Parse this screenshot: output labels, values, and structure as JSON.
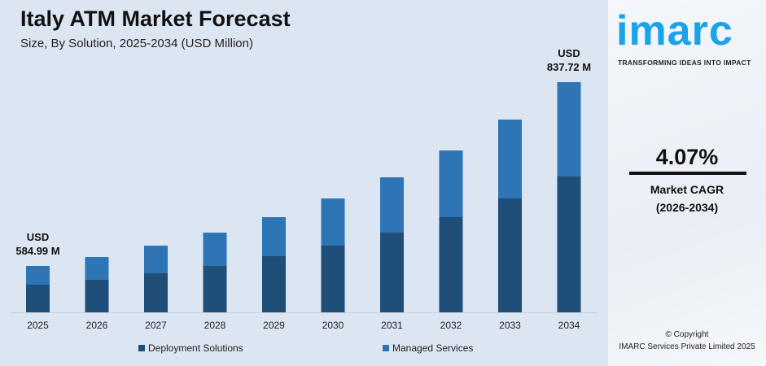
{
  "header": {
    "title": "Italy ATM Market Forecast",
    "subtitle": "Size, By Solution, 2025-2034 (USD Million)"
  },
  "chart_data": {
    "type": "bar",
    "stacked": true,
    "title": "Italy ATM Market Forecast",
    "subtitle": "Size, By Solution, 2025-2034 (USD Million)",
    "categories": [
      "2025",
      "2026",
      "2027",
      "2028",
      "2029",
      "2030",
      "2031",
      "2032",
      "2033",
      "2034"
    ],
    "series": [
      {
        "name": "Deployment Solutions",
        "color": "#1f4e79",
        "values": [
          34,
          40,
          48,
          57,
          69,
          82,
          98,
          117,
          140,
          167
        ]
      },
      {
        "name": "Managed Services",
        "color": "#2e75b6",
        "values": [
          23,
          28,
          34,
          41,
          48,
          58,
          68,
          82,
          97,
          116
        ]
      }
    ],
    "value_scale": "relative (no axis printed)",
    "ylim": [
      0,
      300
    ],
    "grid": false,
    "legend_position": "bottom",
    "annotations": [
      {
        "category": "2025",
        "line1": "USD",
        "line2": "584.99 M"
      },
      {
        "category": "2034",
        "line1": "USD",
        "line2": "837.72 M"
      }
    ]
  },
  "sidebar": {
    "logo": "imarc",
    "tagline": "TRANSFORMING IDEAS INTO IMPACT",
    "cagr_value": "4.07%",
    "cagr_label": "Market CAGR",
    "cagr_period": "(2026-2034)",
    "copyright": "© Copyright",
    "company": "IMARC Services Private Limited 2025"
  }
}
